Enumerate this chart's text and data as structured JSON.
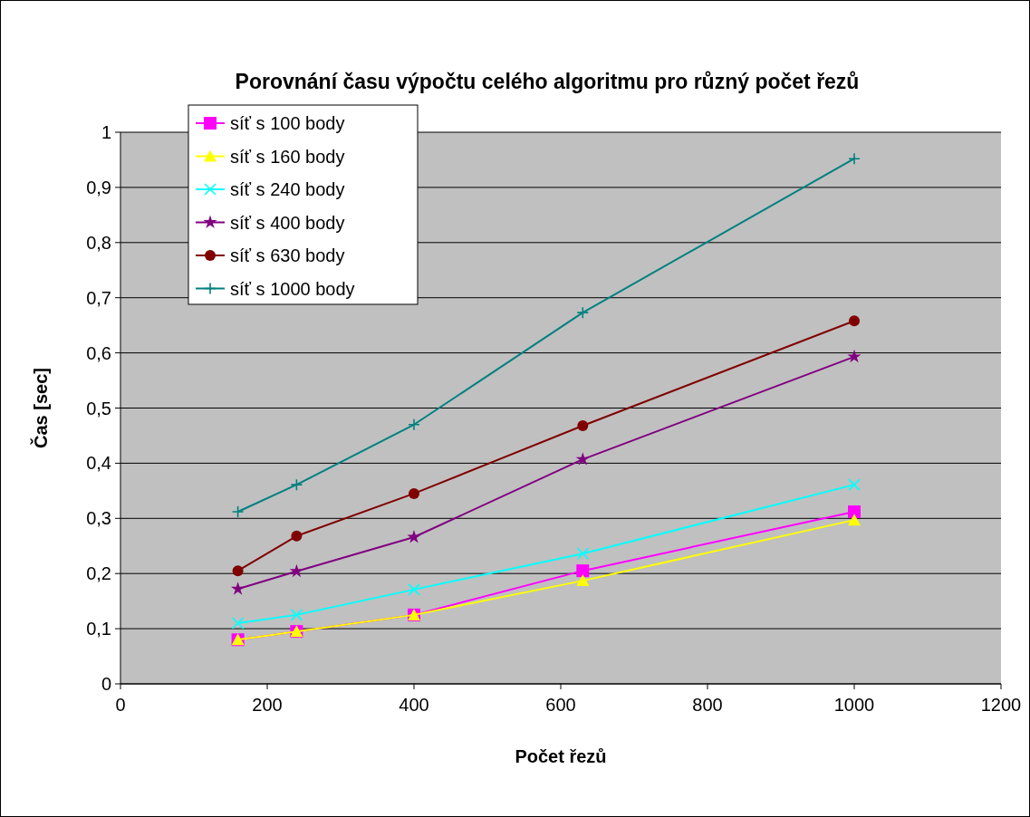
{
  "chart_data": {
    "type": "line",
    "title": "Porovnání času výpočtu celého algoritmu pro různý počet řezů",
    "xlabel": "Počet řezů",
    "ylabel": "Čas [sec]",
    "x": [
      160,
      240,
      400,
      630,
      1000
    ],
    "series": [
      {
        "name": "síť s 100 body",
        "color": "#ff00ff",
        "marker": "square",
        "values": [
          0.08,
          0.095,
          0.125,
          0.205,
          0.312
        ]
      },
      {
        "name": "síť s 160 body",
        "color": "#ffff00",
        "marker": "triangle",
        "values": [
          0.08,
          0.095,
          0.125,
          0.187,
          0.297
        ]
      },
      {
        "name": "síť s 240 body",
        "color": "#00ffff",
        "marker": "cross",
        "values": [
          0.11,
          0.125,
          0.171,
          0.236,
          0.361
        ]
      },
      {
        "name": "síť s 400 body",
        "color": "#800080",
        "marker": "star",
        "values": [
          0.172,
          0.204,
          0.266,
          0.407,
          0.593
        ]
      },
      {
        "name": "síť s 630 body",
        "color": "#800000",
        "marker": "circle",
        "values": [
          0.205,
          0.268,
          0.345,
          0.468,
          0.658
        ]
      },
      {
        "name": "síť s 1000 body",
        "color": "#008080",
        "marker": "plus",
        "values": [
          0.312,
          0.361,
          0.47,
          0.673,
          0.952
        ]
      }
    ],
    "xlim": [
      0,
      1200
    ],
    "xticks": [
      0,
      200,
      400,
      600,
      800,
      1000,
      1200
    ],
    "ylim": [
      0,
      1
    ],
    "yticks": [
      {
        "value": 0,
        "label": "0"
      },
      {
        "value": 0.1,
        "label": "0,1"
      },
      {
        "value": 0.2,
        "label": "0,2"
      },
      {
        "value": 0.3,
        "label": "0,3"
      },
      {
        "value": 0.4,
        "label": "0,4"
      },
      {
        "value": 0.5,
        "label": "0,5"
      },
      {
        "value": 0.6,
        "label": "0,6"
      },
      {
        "value": 0.7,
        "label": "0,7"
      },
      {
        "value": 0.8,
        "label": "0,8"
      },
      {
        "value": 0.9,
        "label": "0,9"
      },
      {
        "value": 1,
        "label": "1"
      }
    ],
    "grid": "y",
    "legend": "top left",
    "line_style": "solid"
  }
}
